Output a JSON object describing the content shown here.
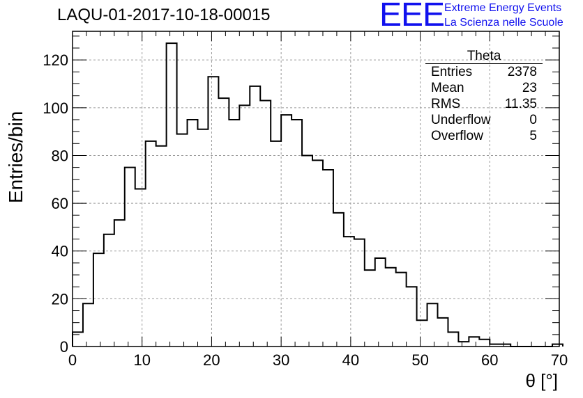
{
  "header": {
    "title": "LAQU-01-2017-10-18-00015",
    "logo_text": "EEE",
    "brand_line1": "Extreme Energy Events",
    "brand_line2": "La Scienza nelle Scuole"
  },
  "stats_box": {
    "title": "Theta",
    "rows": [
      {
        "label": "Entries",
        "value": "2378"
      },
      {
        "label": "Mean",
        "value": "23"
      },
      {
        "label": "RMS",
        "value": "11.35"
      },
      {
        "label": "Underflow",
        "value": "0"
      },
      {
        "label": "Overflow",
        "value": "5"
      }
    ]
  },
  "colors": {
    "histogram": "#000000",
    "grid": "#9a9a9a",
    "logo": "#1111ee"
  },
  "chart_data": {
    "type": "bar",
    "histogram_style": "step",
    "title": "LAQU-01-2017-10-18-00015",
    "xlabel": "θ [°]",
    "ylabel": "Entries/bin",
    "xlim": [
      0,
      70
    ],
    "ylim": [
      0,
      132
    ],
    "grid": true,
    "bin_width": 1.5,
    "x_ticks": [
      0,
      10,
      20,
      30,
      40,
      50,
      60,
      70
    ],
    "y_ticks": [
      0,
      20,
      40,
      60,
      80,
      100,
      120
    ],
    "values": [
      6,
      18,
      39,
      47,
      53,
      75,
      66,
      86,
      84,
      127,
      89,
      95,
      91,
      113,
      104,
      95,
      101,
      109,
      103,
      86,
      97,
      95,
      80,
      78,
      74,
      56,
      46,
      45,
      32,
      37,
      33,
      31,
      25,
      11,
      18,
      12,
      6,
      2,
      4,
      3,
      1,
      1,
      0,
      0,
      0,
      0,
      1
    ]
  }
}
